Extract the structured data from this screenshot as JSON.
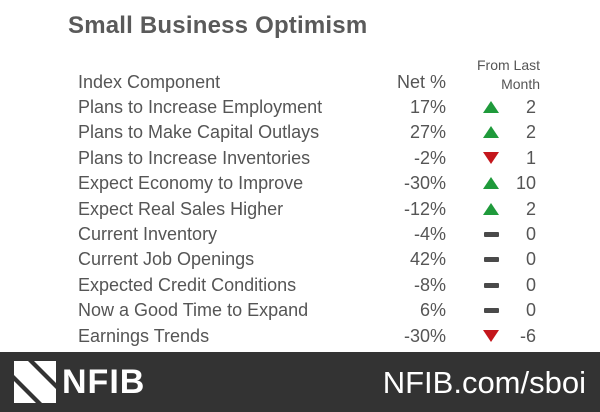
{
  "title": "Small Business Optimism",
  "columns": {
    "component": "Index Component",
    "net": "Net %",
    "change_line1": "From Last",
    "change_line2": "Month"
  },
  "rows": [
    {
      "label": "Plans to Increase Employment",
      "net": "17%",
      "direction": "up",
      "change": "2"
    },
    {
      "label": "Plans to Make Capital Outlays",
      "net": "27%",
      "direction": "up",
      "change": "2"
    },
    {
      "label": "Plans to Increase Inventories",
      "net": "-2%",
      "direction": "down",
      "change": "1"
    },
    {
      "label": "Expect Economy to Improve",
      "net": "-30%",
      "direction": "up",
      "change": "10"
    },
    {
      "label": "Expect Real Sales Higher",
      "net": "-12%",
      "direction": "up",
      "change": "2"
    },
    {
      "label": "Current Inventory",
      "net": "-4%",
      "direction": "flat",
      "change": "0"
    },
    {
      "label": "Current Job Openings",
      "net": "42%",
      "direction": "flat",
      "change": "0"
    },
    {
      "label": "Expected Credit Conditions",
      "net": "-8%",
      "direction": "flat",
      "change": "0"
    },
    {
      "label": "Now a Good Time to Expand",
      "net": "6%",
      "direction": "flat",
      "change": "0"
    },
    {
      "label": "Earnings Trends",
      "net": "-30%",
      "direction": "down",
      "change": "-6"
    }
  ],
  "footer": {
    "logo": "NFIB",
    "url": "NFIB.com/sboi"
  },
  "colors": {
    "up": "#1f9a3b",
    "down": "#c4161c",
    "flat": "#4a4a4a",
    "footer_bg": "#333333"
  }
}
